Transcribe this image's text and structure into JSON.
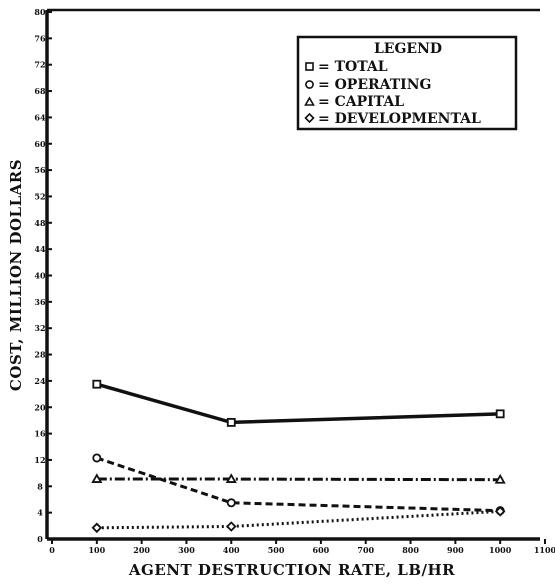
{
  "chart_data": {
    "type": "line",
    "title": "",
    "xlabel": "AGENT DESTRUCTION RATE, LB/HR",
    "ylabel": "COST, MILLION DOLLARS",
    "xlim": [
      0,
      1100
    ],
    "ylim": [
      0,
      80
    ],
    "x_ticks": [
      "0",
      "100",
      "200",
      "300",
      "400",
      "500",
      "600",
      "700",
      "800",
      "900",
      "1000",
      "1100"
    ],
    "y_ticks": [
      "0",
      "4",
      "8",
      "12",
      "16",
      "20",
      "24",
      "28",
      "32",
      "36",
      "40",
      "44",
      "48",
      "52",
      "56",
      "60",
      "64",
      "68",
      "72",
      "76",
      "80"
    ],
    "grid": false,
    "legend": {
      "title": "LEGEND",
      "placement": "top-right",
      "entries": [
        "= TOTAL",
        "= OPERATING",
        "= CAPITAL",
        "= DEVELOPMENTAL"
      ]
    },
    "x": [
      100,
      400,
      1000
    ],
    "series": [
      {
        "name": "TOTAL",
        "marker": "square",
        "dash": "solid",
        "values": [
          23.5,
          17.7,
          19.0
        ]
      },
      {
        "name": "OPERATING",
        "marker": "circle",
        "dash": "dashed",
        "values": [
          12.3,
          5.5,
          4.3
        ]
      },
      {
        "name": "CAPITAL",
        "marker": "triangle",
        "dash": "dashdot",
        "values": [
          9.1,
          9.1,
          9.0
        ]
      },
      {
        "name": "DEVELOPMENTAL",
        "marker": "diamond",
        "dash": "dotted",
        "values": [
          1.7,
          1.9,
          4.2
        ]
      }
    ]
  }
}
